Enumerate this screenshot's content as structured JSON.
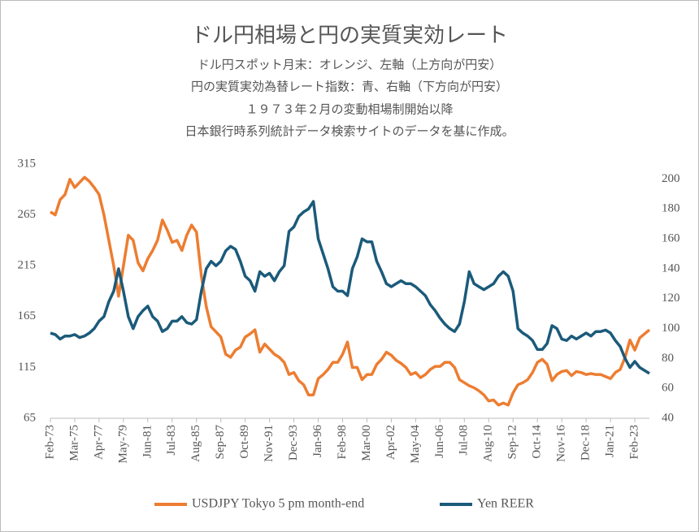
{
  "chart_data": {
    "type": "line",
    "title": "ドル円相場と円の実質実効レート",
    "subtitle": [
      "ドル円スポット月末：オレンジ、左軸（上方向が円安）",
      "円の実質実効為替レート指数：青、右軸（下方向が円安）",
      "１９７３年２月の変動相場制開始以降",
      "日本銀行時系列統計データ検索サイトのデータを基に作成。"
    ],
    "categories": [
      "Feb-73",
      null,
      null,
      null,
      null,
      "Mar-75",
      null,
      null,
      null,
      null,
      "Apr-77",
      null,
      null,
      null,
      null,
      "May-79",
      null,
      null,
      null,
      null,
      "Jun-81",
      null,
      null,
      null,
      null,
      "Jul-83",
      null,
      null,
      null,
      null,
      "Aug-85",
      null,
      null,
      null,
      null,
      "Sep-87",
      null,
      null,
      null,
      null,
      "Oct-89",
      null,
      null,
      null,
      null,
      "Nov-91",
      null,
      null,
      null,
      null,
      "Dec-93",
      null,
      null,
      null,
      null,
      "Jan-96",
      null,
      null,
      null,
      null,
      "Feb-98",
      null,
      null,
      null,
      null,
      "Mar-00",
      null,
      null,
      null,
      null,
      "Apr-02",
      null,
      null,
      null,
      null,
      "May-04",
      null,
      null,
      null,
      null,
      "Jun-06",
      null,
      null,
      null,
      null,
      "Jul-08",
      null,
      null,
      null,
      null,
      "Aug-10",
      null,
      null,
      null,
      null,
      "Sep-12",
      null,
      null,
      null,
      null,
      "Oct-14",
      null,
      null,
      null,
      null,
      "Nov-16",
      null,
      null,
      null,
      null,
      "Dec-18",
      null,
      null,
      null,
      null,
      "Jan-21",
      null,
      null,
      null,
      null,
      "Feb-23",
      null,
      null,
      null
    ],
    "series": [
      {
        "name": "USDJPY Tokyo 5 pm month-end",
        "color": "#ED7D31",
        "values": [
          268,
          265,
          280,
          285,
          300,
          292,
          297,
          302,
          298,
          292,
          285,
          265,
          240,
          215,
          185,
          215,
          245,
          240,
          218,
          210,
          222,
          230,
          240,
          260,
          250,
          238,
          240,
          230,
          245,
          255,
          248,
          205,
          175,
          155,
          150,
          145,
          128,
          125,
          132,
          135,
          145,
          148,
          152,
          130,
          138,
          133,
          128,
          125,
          120,
          108,
          110,
          102,
          98,
          88,
          88,
          104,
          108,
          113,
          120,
          120,
          128,
          140,
          115,
          115,
          103,
          108,
          108,
          118,
          123,
          130,
          127,
          122,
          119,
          115,
          108,
          110,
          105,
          108,
          113,
          116,
          116,
          120,
          120,
          115,
          103,
          100,
          97,
          95,
          92,
          88,
          82,
          83,
          78,
          80,
          78,
          90,
          98,
          100,
          103,
          110,
          120,
          123,
          118,
          102,
          108,
          111,
          112,
          107,
          111,
          110,
          108,
          109,
          108,
          108,
          106,
          104,
          110,
          113,
          125,
          142,
          132,
          144,
          148,
          152
        ]
      },
      {
        "name": "Yen REER",
        "color": "#1B5A7A",
        "axis": "y2",
        "values": [
          97,
          96,
          93,
          95,
          95,
          96,
          94,
          95,
          97,
          100,
          105,
          108,
          118,
          125,
          140,
          125,
          108,
          100,
          108,
          112,
          115,
          108,
          105,
          98,
          100,
          105,
          105,
          108,
          104,
          103,
          106,
          125,
          140,
          145,
          142,
          145,
          152,
          155,
          153,
          145,
          135,
          132,
          125,
          138,
          135,
          137,
          132,
          138,
          142,
          165,
          168,
          175,
          178,
          180,
          185,
          160,
          150,
          140,
          128,
          125,
          125,
          122,
          140,
          148,
          160,
          158,
          158,
          145,
          138,
          130,
          128,
          130,
          132,
          130,
          130,
          128,
          125,
          122,
          116,
          112,
          107,
          103,
          100,
          98,
          103,
          118,
          138,
          130,
          128,
          126,
          128,
          130,
          135,
          138,
          135,
          125,
          100,
          97,
          95,
          92,
          86,
          86,
          90,
          102,
          100,
          93,
          92,
          95,
          93,
          95,
          97,
          95,
          98,
          98,
          99,
          97,
          92,
          88,
          80,
          74,
          78,
          74,
          72,
          70
        ]
      }
    ],
    "ylim": [
      65,
      315
    ],
    "yticks": [
      65,
      115,
      165,
      215,
      265,
      315
    ],
    "y2lim": [
      40,
      210
    ],
    "y2ticks": [
      40,
      60,
      80,
      100,
      120,
      140,
      160,
      180,
      200
    ]
  }
}
